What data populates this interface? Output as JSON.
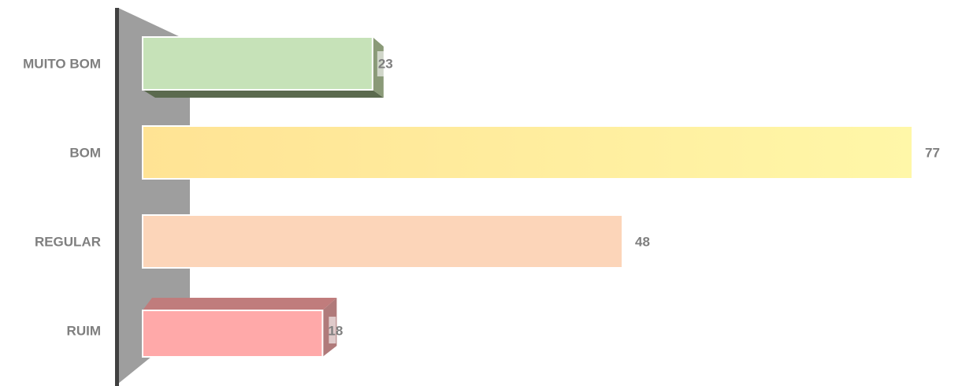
{
  "chart_data": {
    "type": "bar",
    "orientation": "horizontal",
    "categories": [
      "MUITO BOM",
      "BOM",
      "REGULAR",
      "RUIM"
    ],
    "values": [
      23,
      77,
      48,
      18
    ],
    "xlim": [
      0,
      77
    ],
    "grid": false,
    "legend": "none",
    "data_labels": true,
    "colors": {
      "MUITO BOM": "#c6e2b8",
      "BOM": "#ffe9a0",
      "REGULAR": "#fcd5b9",
      "RUIM": "#ffa9a9"
    },
    "side_colors": {
      "MUITO BOM": "#8a9a78",
      "BOM": "#d4c68a",
      "REGULAR": "#d9b59b",
      "RUIM": "#b07a7a"
    }
  }
}
